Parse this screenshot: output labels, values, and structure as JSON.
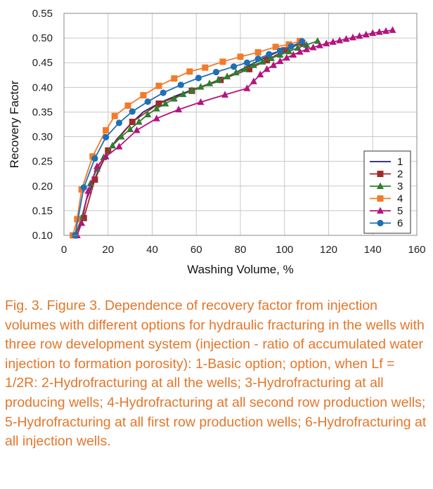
{
  "chart_data": {
    "type": "line",
    "xlabel": "Washing Volume, %",
    "ylabel": "Recovery Factor",
    "xlim": [
      0,
      160
    ],
    "ylim": [
      0.1,
      0.55
    ],
    "x_ticks": [
      "0",
      "20",
      "40",
      "60",
      "80",
      "100",
      "120",
      "140",
      "160"
    ],
    "y_ticks": [
      "0.10",
      "0.15",
      "0.20",
      "0.25",
      "0.30",
      "0.35",
      "0.40",
      "0.45",
      "0.50",
      "0.55"
    ],
    "grid": true,
    "legend_position": "right",
    "series": [
      {
        "name": "1",
        "color": "#1f1f6b",
        "marker": "none",
        "x": [
          5,
          8,
          10,
          13,
          16,
          20,
          24,
          30,
          36,
          44,
          52,
          60,
          70,
          80,
          90,
          100,
          108
        ],
        "y": [
          0.1,
          0.13,
          0.17,
          0.205,
          0.235,
          0.27,
          0.295,
          0.325,
          0.35,
          0.37,
          0.385,
          0.398,
          0.412,
          0.435,
          0.458,
          0.478,
          0.492
        ]
      },
      {
        "name": "2",
        "color": "#a32a2a",
        "marker": "square",
        "x": [
          5,
          9,
          14,
          20,
          31,
          43,
          58,
          71,
          84,
          92,
          100,
          108
        ],
        "y": [
          0.1,
          0.135,
          0.213,
          0.272,
          0.33,
          0.367,
          0.393,
          0.415,
          0.437,
          0.455,
          0.475,
          0.49
        ]
      },
      {
        "name": "3",
        "color": "#2e7d32",
        "marker": "triangle",
        "x": [
          5,
          8,
          12,
          15,
          18,
          22,
          26,
          30,
          34,
          38,
          42,
          46,
          50,
          54,
          58,
          62,
          66,
          70,
          74,
          78,
          82,
          86,
          90,
          94,
          98,
          102,
          106,
          110,
          115
        ],
        "y": [
          0.1,
          0.135,
          0.205,
          0.235,
          0.258,
          0.282,
          0.3,
          0.315,
          0.33,
          0.345,
          0.357,
          0.367,
          0.377,
          0.386,
          0.394,
          0.401,
          0.408,
          0.415,
          0.422,
          0.43,
          0.437,
          0.445,
          0.452,
          0.459,
          0.466,
          0.473,
          0.48,
          0.486,
          0.494
        ]
      },
      {
        "name": "4",
        "color": "#f27b2a",
        "marker": "square",
        "x": [
          4,
          6,
          8,
          13,
          19,
          23,
          29,
          36,
          43,
          50,
          57,
          64,
          72,
          80,
          88,
          96,
          102,
          107
        ],
        "y": [
          0.1,
          0.133,
          0.193,
          0.26,
          0.313,
          0.342,
          0.363,
          0.384,
          0.403,
          0.418,
          0.432,
          0.44,
          0.452,
          0.462,
          0.471,
          0.482,
          0.487,
          0.494
        ]
      },
      {
        "name": "5",
        "color": "#b4137e",
        "marker": "triangle",
        "x": [
          6,
          8,
          11,
          15,
          19,
          25,
          33,
          42,
          52,
          62,
          73,
          83,
          86,
          89,
          92,
          95,
          98,
          101,
          104,
          107,
          110,
          113,
          116,
          119,
          122,
          125,
          128,
          131,
          134,
          137,
          140,
          143,
          146,
          149
        ],
        "y": [
          0.1,
          0.125,
          0.19,
          0.24,
          0.26,
          0.28,
          0.313,
          0.337,
          0.355,
          0.37,
          0.385,
          0.398,
          0.412,
          0.426,
          0.437,
          0.445,
          0.453,
          0.46,
          0.466,
          0.472,
          0.477,
          0.481,
          0.485,
          0.489,
          0.492,
          0.495,
          0.498,
          0.501,
          0.504,
          0.507,
          0.51,
          0.512,
          0.514,
          0.516
        ]
      },
      {
        "name": "6",
        "color": "#1f6fb5",
        "marker": "circle",
        "x": [
          5,
          9,
          14,
          19,
          25,
          31,
          38,
          45,
          53,
          61,
          69,
          77,
          83,
          88,
          93,
          98,
          103,
          108
        ],
        "y": [
          0.1,
          0.197,
          0.256,
          0.299,
          0.328,
          0.351,
          0.371,
          0.389,
          0.405,
          0.419,
          0.431,
          0.442,
          0.45,
          0.458,
          0.467,
          0.474,
          0.483,
          0.493
        ]
      }
    ]
  },
  "caption": {
    "label": "Fig. 3.",
    "text": "Figure 3. Dependence of recovery factor from injection volumes with different options for hydraulic fracturing in the wells with three row development system (injection - ratio of accumulated water injection to formation porosity): 1-Basic option; option, when Lf = 1/2R: 2-Hydrofracturing at all the wells; 3-Hydrofracturing at all producing wells; 4-Hydrofracturing at all second row production wells; 5-Hydrofracturing at all first row production wells; 6-Hydrofracturing at all injection wells."
  }
}
